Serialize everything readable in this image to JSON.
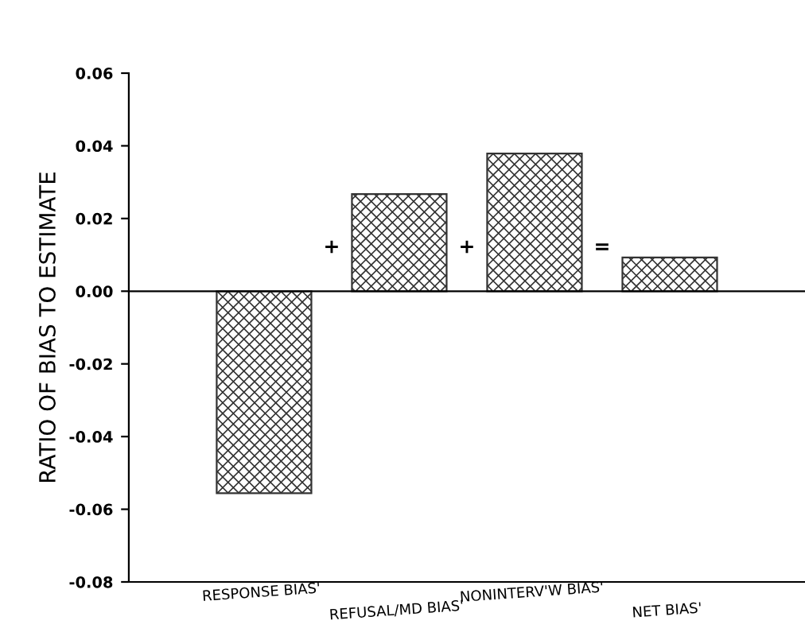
{
  "chart_data": {
    "type": "bar",
    "categories": [
      "RESPONSE BIAS'",
      "REFUSAL/MD BIAS'",
      "NONINTERV'W BIAS'",
      "NET BIAS'"
    ],
    "values": [
      -0.0556,
      0.0267,
      0.0379,
      0.0093
    ],
    "color": "#333333",
    "ylabel": "RATIO OF BIAS TO ESTIMATE",
    "ylim": [
      -0.08,
      0.06
    ],
    "yticks": [
      {
        "value": -0.08,
        "label": "-0.08"
      },
      {
        "value": -0.06,
        "label": "-0.06"
      },
      {
        "value": -0.04,
        "label": "-0.04"
      },
      {
        "value": -0.02,
        "label": "-0.02"
      },
      {
        "value": 0.0,
        "label": "0.00"
      },
      {
        "value": 0.02,
        "label": "0.02"
      },
      {
        "value": 0.04,
        "label": "0.04"
      },
      {
        "value": 0.06,
        "label": "0.06"
      }
    ],
    "ref_lines": [
      {
        "axis": "y",
        "value": 0
      }
    ],
    "annotations": [
      "+",
      "+",
      "="
    ],
    "grid": false
  }
}
